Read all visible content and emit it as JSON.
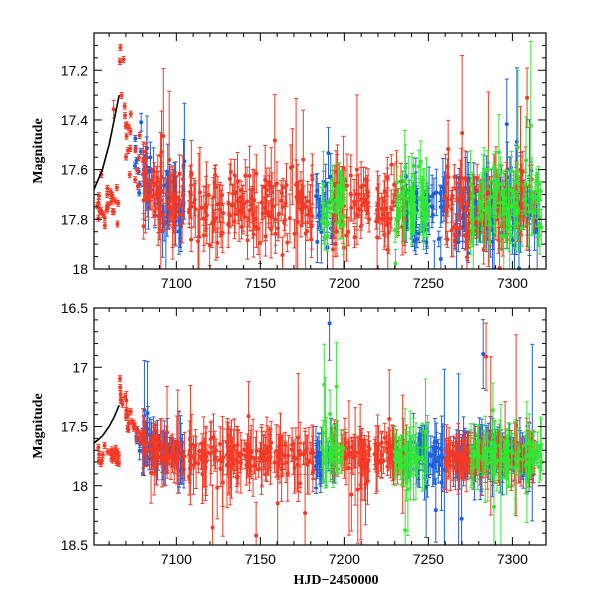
{
  "chart_data": [
    {
      "type": "scatter",
      "ylabel": "Magnitude",
      "xlabel": "",
      "xlim": [
        7051,
        7320
      ],
      "ylim": [
        18.0,
        17.05
      ],
      "xticks": [
        "7100",
        "7150",
        "7200",
        "7250",
        "7300"
      ],
      "yticks": [
        "17.2",
        "17.4",
        "17.6",
        "17.8",
        "18"
      ],
      "baseline": 17.75,
      "baseline_scatter": 0.07,
      "decay": {
        "peak_x": 7066,
        "peak_mag": 17.15,
        "amplitude": 0.55,
        "tau_days": 9
      },
      "model_curve": {
        "x": [
          7051,
          7056,
          7060,
          7063,
          7066
        ],
        "y": [
          17.68,
          17.6,
          17.5,
          17.4,
          17.3
        ]
      },
      "series": [
        {
          "name": "blue",
          "color": "#1f5fd9",
          "x_ranges": [
            [
              7075,
              7105
            ],
            [
              7183,
              7195
            ],
            [
              7236,
              7260
            ],
            [
              7265,
              7315
            ]
          ]
        },
        {
          "name": "red",
          "color": "#f23a26",
          "x_ranges": [
            [
              7053,
              7105
            ],
            [
              7107,
              7128
            ],
            [
              7130,
              7182
            ],
            [
              7192,
              7215
            ],
            [
              7218,
              7237
            ],
            [
              7260,
              7313
            ]
          ]
        },
        {
          "name": "green",
          "color": "#32e634",
          "x_ranges": [
            [
              7186,
              7200
            ],
            [
              7230,
              7250
            ],
            [
              7275,
              7318
            ]
          ]
        }
      ]
    },
    {
      "type": "scatter",
      "ylabel": "Magnitude",
      "xlabel": "HJD−2450000",
      "xlim": [
        7051,
        7320
      ],
      "ylim": [
        18.5,
        16.5
      ],
      "xticks": [
        "7100",
        "7150",
        "7200",
        "7250",
        "7300"
      ],
      "yticks": [
        "16.5",
        "17",
        "17.5",
        "18",
        "18.5"
      ],
      "baseline": 17.75,
      "baseline_scatter": 0.06,
      "decay": {
        "peak_x": 7066,
        "peak_mag": 17.15,
        "amplitude": 0.55,
        "tau_days": 9
      },
      "model_curve": {
        "x": [
          7051,
          7056,
          7060,
          7063,
          7066
        ],
        "y": [
          17.64,
          17.58,
          17.5,
          17.42,
          17.32
        ]
      },
      "series": [
        {
          "name": "blue",
          "color": "#1f5fd9",
          "x_ranges": [
            [
              7075,
              7105
            ],
            [
              7183,
              7195
            ],
            [
              7236,
              7260
            ],
            [
              7265,
              7315
            ]
          ]
        },
        {
          "name": "red",
          "color": "#f23a26",
          "x_ranges": [
            [
              7053,
              7105
            ],
            [
              7107,
              7128
            ],
            [
              7130,
              7182
            ],
            [
              7192,
              7215
            ],
            [
              7218,
              7237
            ],
            [
              7260,
              7313
            ]
          ]
        },
        {
          "name": "green",
          "color": "#32e634",
          "x_ranges": [
            [
              7186,
              7200
            ],
            [
              7230,
              7250
            ],
            [
              7275,
              7318
            ]
          ]
        }
      ]
    }
  ]
}
